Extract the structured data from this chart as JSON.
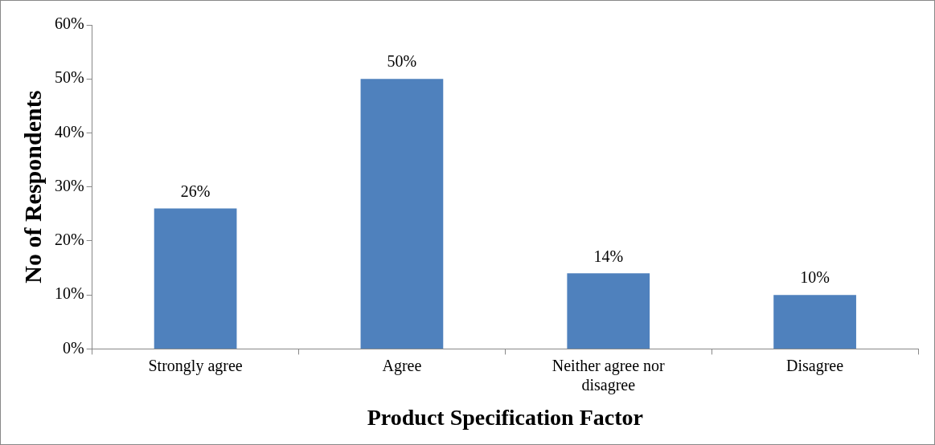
{
  "chart_data": {
    "type": "bar",
    "xlabel": "Product Specification Factor",
    "ylabel": "No of Respondents",
    "categories": [
      "Strongly agree",
      "Agree",
      "Neither agree nor disagree",
      "Disagree"
    ],
    "values": [
      26,
      50,
      14,
      10
    ],
    "value_labels": [
      "26%",
      "50%",
      "14%",
      "10%"
    ],
    "color": "#4f81bd",
    "ylim": [
      0,
      60
    ],
    "yticks": [
      {
        "value": 0,
        "label": "0%"
      },
      {
        "value": 10,
        "label": "10%"
      },
      {
        "value": 20,
        "label": "20%"
      },
      {
        "value": 30,
        "label": "30%"
      },
      {
        "value": 40,
        "label": "40%"
      },
      {
        "value": 50,
        "label": "50%"
      },
      {
        "value": 60,
        "label": "60%"
      }
    ],
    "grid": false,
    "legend": false
  }
}
